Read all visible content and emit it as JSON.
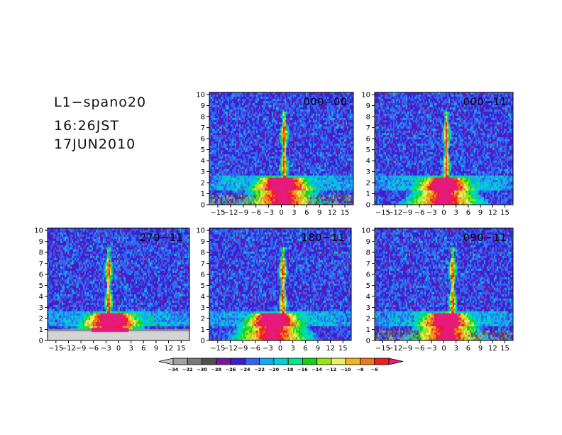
{
  "header": {
    "experiment": "L1−spano20",
    "time": "16:26JST",
    "date": "17JUN2010"
  },
  "chart_data": {
    "type": "heatmap",
    "x_ticks": [
      "−15",
      "−12",
      "−9",
      "−6",
      "−3",
      "0",
      "3",
      "6",
      "9",
      "12",
      "15"
    ],
    "y_ticks": [
      "0",
      "1",
      "2",
      "3",
      "4",
      "5",
      "6",
      "7",
      "8",
      "9",
      "10"
    ],
    "xlim": [
      -17,
      17
    ],
    "ylim": [
      0,
      10.2
    ],
    "panels": [
      {
        "label": "000−00"
      },
      {
        "label": "000−11"
      },
      {
        "label": "270−11"
      },
      {
        "label": "180−11"
      },
      {
        "label": "090−11"
      }
    ],
    "colorbar": {
      "ticks": [
        "−34",
        "−32",
        "−30",
        "−28",
        "−26",
        "−24",
        "−22",
        "−20",
        "−18",
        "−16",
        "−14",
        "−12",
        "−10",
        "−8",
        "−6"
      ],
      "colors": [
        "#c8c8c8",
        "#a0a0a0",
        "#787878",
        "#505050",
        "#7814a0",
        "#3c1ed2",
        "#3264f0",
        "#14aaf0",
        "#00d2d2",
        "#00e68c",
        "#14d214",
        "#96e614",
        "#e6f064",
        "#f0b41e",
        "#f07814",
        "#f01e1e",
        "#e6197d"
      ]
    }
  }
}
